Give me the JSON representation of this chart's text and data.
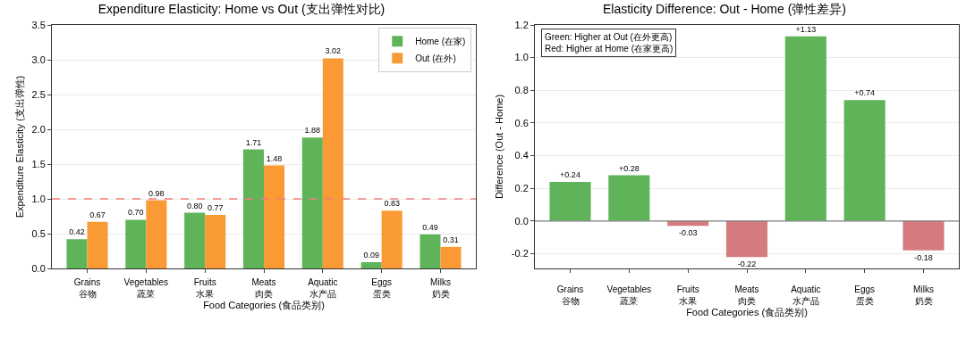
{
  "chart_data": [
    {
      "type": "bar",
      "title": "Expenditure Elasticity: Home vs Out (支出弹性对比)",
      "xlabel": "Food Categories (食品类别)",
      "ylabel": "Expenditure Elasticity (支出弹性)",
      "categories": [
        "Grains\n谷物",
        "Vegetables\n蔬菜",
        "Fruits\n水果",
        "Meats\n肉类",
        "Aquatic\n水产品",
        "Eggs\n蛋类",
        "Milks\n奶类"
      ],
      "series": [
        {
          "name": "Home (在家)",
          "color": "#5fb45a",
          "values": [
            0.42,
            0.7,
            0.8,
            1.71,
            1.88,
            0.09,
            0.49
          ],
          "value_labels": [
            "0.42",
            "0.70",
            "0.80",
            "1.71",
            "1.88",
            "0.09",
            "0.49"
          ]
        },
        {
          "name": "Out (在外)",
          "color": "#fa9a35",
          "values": [
            0.67,
            0.98,
            0.77,
            1.48,
            3.02,
            0.83,
            0.31
          ],
          "value_labels": [
            "0.67",
            "0.98",
            "0.77",
            "1.48",
            "3.02",
            "0.83",
            "0.31"
          ]
        }
      ],
      "ylim": [
        0,
        3.5
      ],
      "yticks": [
        {
          "value": 0,
          "label": "0.0"
        },
        0.5,
        {
          "value": 1,
          "label": "1.0"
        },
        1.5,
        {
          "value": 2,
          "label": "2.0"
        },
        2.5,
        {
          "value": 3,
          "label": "3.0"
        },
        3.5
      ],
      "ref_lines": [
        {
          "axis": "y",
          "value": 1,
          "color": "#f47c7c",
          "line_style": "dashed"
        }
      ],
      "grid": "y",
      "legend": "top right"
    },
    {
      "type": "bar",
      "title": "Elasticity Difference: Out - Home (弹性差异)",
      "xlabel": "Food Categories (食品类别)",
      "ylabel": "Difference (Out - Home)",
      "categories": [
        "Grains\n谷物",
        "Vegetables\n蔬菜",
        "Fruits\n水果",
        "Meats\n肉类",
        "Aquatic\n水产品",
        "Eggs\n蛋类",
        "Milks\n奶类"
      ],
      "values": [
        0.24,
        0.28,
        -0.03,
        -0.22,
        1.13,
        0.74,
        -0.18
      ],
      "colors": [
        "#5fb45a",
        "#5fb45a",
        "#d57b80",
        "#d57b80",
        "#5fb45a",
        "#5fb45a",
        "#d57b80"
      ],
      "value_labels": [
        "+0.24",
        "+0.28",
        "-0.03",
        "-0.22",
        "+1.13",
        "+0.74",
        "-0.18"
      ],
      "ylim": [
        -0.29,
        1.2
      ],
      "yticks": [
        -0.2,
        {
          "value": 0,
          "label": "0.0"
        },
        0.2,
        0.4,
        0.6,
        0.8,
        {
          "value": 1,
          "label": "1.0"
        },
        1.2
      ],
      "ref_lines": [
        {
          "axis": "y",
          "value": 0,
          "color": "#808080",
          "line_style": "solid"
        }
      ],
      "annotations": [
        "Green: Higher at Out (在外更高)\nRed: Higher at Home (在家更高)"
      ],
      "grid": "y"
    }
  ]
}
